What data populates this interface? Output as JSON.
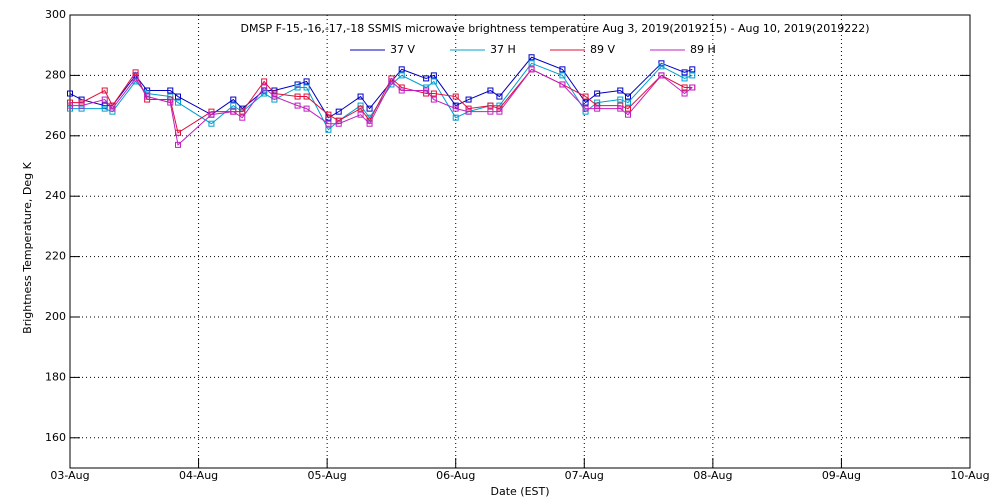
{
  "chart_data": {
    "type": "line",
    "title": "DMSP F-15,-16,-17,-18 SSMIS microwave brightness temperature Aug  3, 2019(2019215) - Aug 10, 2019(2019222)",
    "x_label": "Date (EST)",
    "y_label": "Brightness Temperature, Deg K",
    "x": [
      0.0,
      0.09,
      0.27,
      0.33,
      0.51,
      0.6,
      0.78,
      0.84,
      1.1,
      1.27,
      1.34,
      1.51,
      1.59,
      1.77,
      1.84,
      2.01,
      2.09,
      2.26,
      2.33,
      2.5,
      2.58,
      2.77,
      2.83,
      3.0,
      3.1,
      3.27,
      3.34,
      3.59,
      3.83,
      4.01,
      4.1,
      4.28,
      4.34,
      4.6,
      4.78,
      4.84
    ],
    "series": [
      {
        "name": "37 V",
        "color": "#0000c0",
        "values": [
          274,
          272,
          270,
          270,
          280,
          275,
          275,
          273,
          267,
          272,
          269,
          275,
          275,
          277,
          278,
          266,
          268,
          273,
          269,
          278,
          282,
          279,
          280,
          270,
          272,
          275,
          273,
          286,
          282,
          271,
          274,
          275,
          273,
          284,
          281,
          282
        ]
      },
      {
        "name": "37 H",
        "color": "#00a0d0",
        "values": [
          269,
          269,
          269,
          268,
          278,
          274,
          273,
          271,
          264,
          270,
          268,
          274,
          272,
          276,
          276,
          262,
          265,
          270,
          266,
          277,
          280,
          276,
          278,
          266,
          268,
          270,
          270,
          284,
          280,
          268,
          271,
          272,
          271,
          283,
          279,
          280
        ]
      },
      {
        "name": "89 V",
        "color": "#e0103a",
        "values": [
          271,
          271,
          275,
          270,
          281,
          272,
          272,
          261,
          268,
          268,
          268,
          278,
          274,
          273,
          273,
          267,
          265,
          269,
          265,
          279,
          276,
          274,
          274,
          273,
          269,
          270,
          269,
          282,
          277,
          273,
          270,
          270,
          269,
          280,
          276,
          276
        ]
      },
      {
        "name": "89 H",
        "color": "#c020c0",
        "values": [
          270,
          270,
          272,
          269,
          279,
          273,
          271,
          257,
          267,
          268,
          266,
          276,
          273,
          270,
          269,
          264,
          264,
          267,
          264,
          278,
          275,
          275,
          272,
          269,
          268,
          268,
          268,
          282,
          277,
          269,
          269,
          269,
          267,
          280,
          274,
          276
        ]
      }
    ],
    "xlim": [
      0,
      7
    ],
    "xticks": [
      {
        "value": 0,
        "label": "03-Aug"
      },
      {
        "value": 1,
        "label": "04-Aug"
      },
      {
        "value": 2,
        "label": "05-Aug"
      },
      {
        "value": 3,
        "label": "06-Aug"
      },
      {
        "value": 4,
        "label": "07-Aug"
      },
      {
        "value": 5,
        "label": "08-Aug"
      },
      {
        "value": 6,
        "label": "09-Aug"
      },
      {
        "value": 7,
        "label": "10-Aug"
      }
    ],
    "ylim": [
      150,
      300
    ],
    "yticks": [
      160,
      180,
      200,
      220,
      240,
      260,
      280,
      300
    ],
    "grid": true
  }
}
